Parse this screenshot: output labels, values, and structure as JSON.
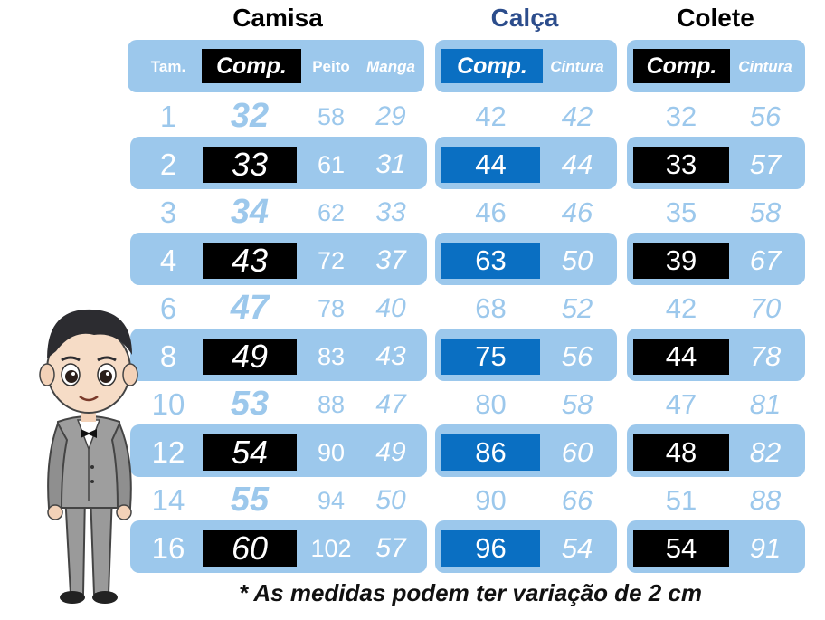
{
  "titles": {
    "camisa": "Camisa",
    "calca": "Calça",
    "colete": "Colete"
  },
  "colors": {
    "band": "#9cc8ec",
    "badge_black": "#000000",
    "badge_blue": "#0a6fc2",
    "calca_title": "#2c4d8c"
  },
  "headers": {
    "camisa": {
      "tam": "Tam.",
      "comp": "Comp.",
      "peito": "Peito",
      "manga": "Manga"
    },
    "calca": {
      "comp": "Comp.",
      "cintura": "Cintura"
    },
    "colete": {
      "comp": "Comp.",
      "cintura": "Cintura"
    }
  },
  "rows": [
    {
      "tam": "1",
      "camisa_comp": "32",
      "peito": "58",
      "manga": "29",
      "calca_comp": "42",
      "calca_cintura": "42",
      "colete_comp": "32",
      "colete_cintura": "56"
    },
    {
      "tam": "2",
      "camisa_comp": "33",
      "peito": "61",
      "manga": "31",
      "calca_comp": "44",
      "calca_cintura": "44",
      "colete_comp": "33",
      "colete_cintura": "57"
    },
    {
      "tam": "3",
      "camisa_comp": "34",
      "peito": "62",
      "manga": "33",
      "calca_comp": "46",
      "calca_cintura": "46",
      "colete_comp": "35",
      "colete_cintura": "58"
    },
    {
      "tam": "4",
      "camisa_comp": "43",
      "peito": "72",
      "manga": "37",
      "calca_comp": "63",
      "calca_cintura": "50",
      "colete_comp": "39",
      "colete_cintura": "67"
    },
    {
      "tam": "6",
      "camisa_comp": "47",
      "peito": "78",
      "manga": "40",
      "calca_comp": "68",
      "calca_cintura": "52",
      "colete_comp": "42",
      "colete_cintura": "70"
    },
    {
      "tam": "8",
      "camisa_comp": "49",
      "peito": "83",
      "manga": "43",
      "calca_comp": "75",
      "calca_cintura": "56",
      "colete_comp": "44",
      "colete_cintura": "78"
    },
    {
      "tam": "10",
      "camisa_comp": "53",
      "peito": "88",
      "manga": "47",
      "calca_comp": "80",
      "calca_cintura": "58",
      "colete_comp": "47",
      "colete_cintura": "81"
    },
    {
      "tam": "12",
      "camisa_comp": "54",
      "peito": "90",
      "manga": "49",
      "calca_comp": "86",
      "calca_cintura": "60",
      "colete_comp": "48",
      "colete_cintura": "82"
    },
    {
      "tam": "14",
      "camisa_comp": "55",
      "peito": "94",
      "manga": "50",
      "calca_comp": "90",
      "calca_cintura": "66",
      "colete_comp": "51",
      "colete_cintura": "88"
    },
    {
      "tam": "16",
      "camisa_comp": "60",
      "peito": "102",
      "manga": "57",
      "calca_comp": "96",
      "calca_cintura": "54",
      "colete_comp": "54",
      "colete_cintura": "91"
    }
  ],
  "footnote": "* As medidas podem ter variação de 2 cm",
  "illustration": "boy-in-gray-suit-icon"
}
